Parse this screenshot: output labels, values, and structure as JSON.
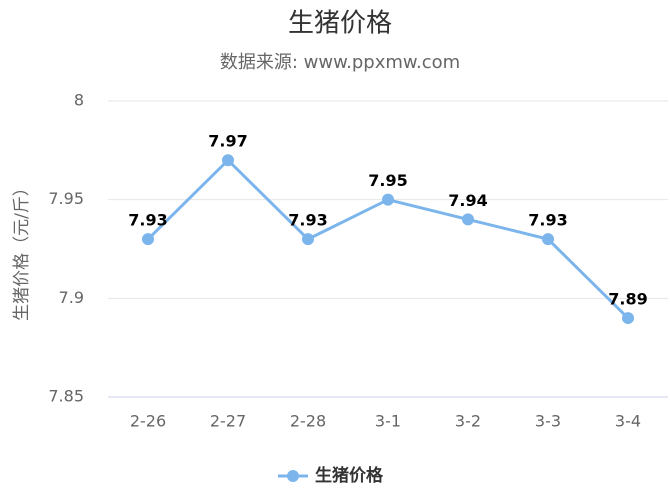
{
  "chart_data": {
    "type": "line",
    "title": "生猪价格",
    "subtitle": "数据来源: www.ppxmw.com",
    "y_label": "生猪价格（元/斤）",
    "categories": [
      "2-26",
      "2-27",
      "2-28",
      "3-1",
      "3-2",
      "3-3",
      "3-4"
    ],
    "series": [
      {
        "name": "生猪价格",
        "color": "#7cb5ec",
        "values": [
          7.93,
          7.97,
          7.93,
          7.95,
          7.94,
          7.93,
          7.89
        ]
      }
    ],
    "ylim": [
      7.85,
      8
    ],
    "yticks": [
      7.85,
      7.9,
      7.95,
      8
    ],
    "grid": true,
    "legend": "bottom"
  }
}
